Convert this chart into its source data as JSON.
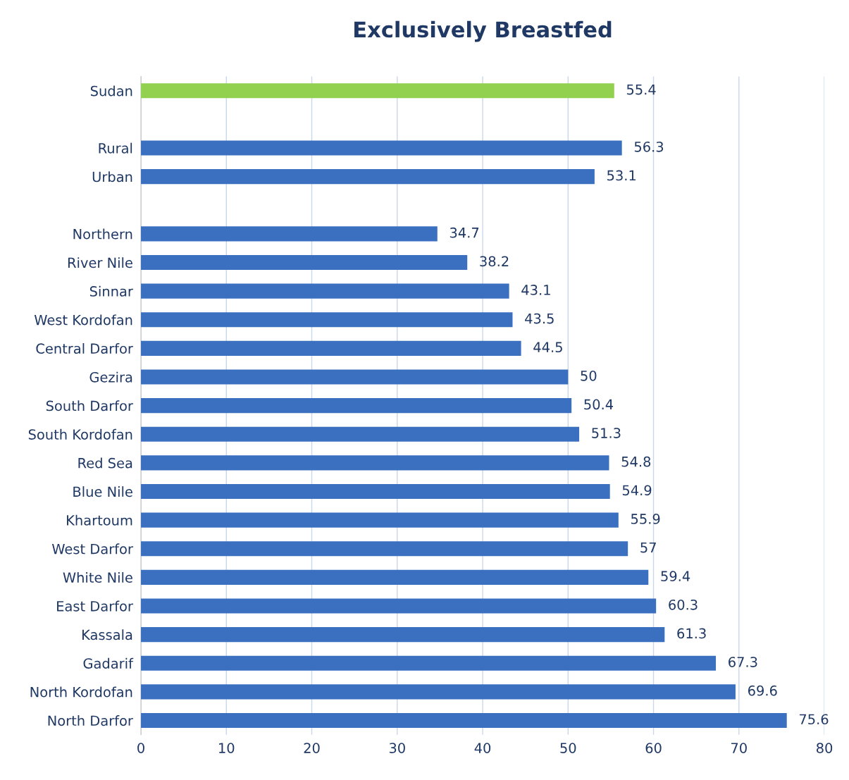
{
  "chart_data": {
    "type": "bar",
    "orientation": "horizontal",
    "title": "Exclusively Breastfed",
    "categories": [
      "Sudan",
      null,
      "Rural",
      "Urban",
      null,
      "Northern",
      "River Nile",
      "Sinnar",
      "West Kordofan",
      "Central Darfor",
      "Gezira",
      "South Darfor",
      "South Kordofan",
      "Red Sea",
      "Blue Nile",
      "Khartoum",
      "West Darfor",
      "White Nile",
      "East Darfor",
      "Kassala",
      "Gadarif",
      "North Kordofan",
      "North Darfor"
    ],
    "values": [
      55.4,
      null,
      56.3,
      53.1,
      null,
      34.7,
      38.2,
      43.1,
      43.5,
      44.5,
      50,
      50.4,
      51.3,
      54.8,
      54.9,
      55.9,
      57,
      59.4,
      60.3,
      61.3,
      67.3,
      69.6,
      75.6
    ],
    "colors": [
      "#92d050",
      null,
      "#3b70c0",
      "#3b70c0",
      null,
      "#3b70c0",
      "#3b70c0",
      "#3b70c0",
      "#3b70c0",
      "#3b70c0",
      "#3b70c0",
      "#3b70c0",
      "#3b70c0",
      "#3b70c0",
      "#3b70c0",
      "#3b70c0",
      "#3b70c0",
      "#3b70c0",
      "#3b70c0",
      "#3b70c0",
      "#3b70c0",
      "#3b70c0",
      "#3b70c0"
    ],
    "xlim": [
      0,
      80
    ],
    "xticks": [
      0,
      10,
      20,
      30,
      40,
      50,
      60,
      70,
      80
    ],
    "grid": "x",
    "data_labels": true
  }
}
